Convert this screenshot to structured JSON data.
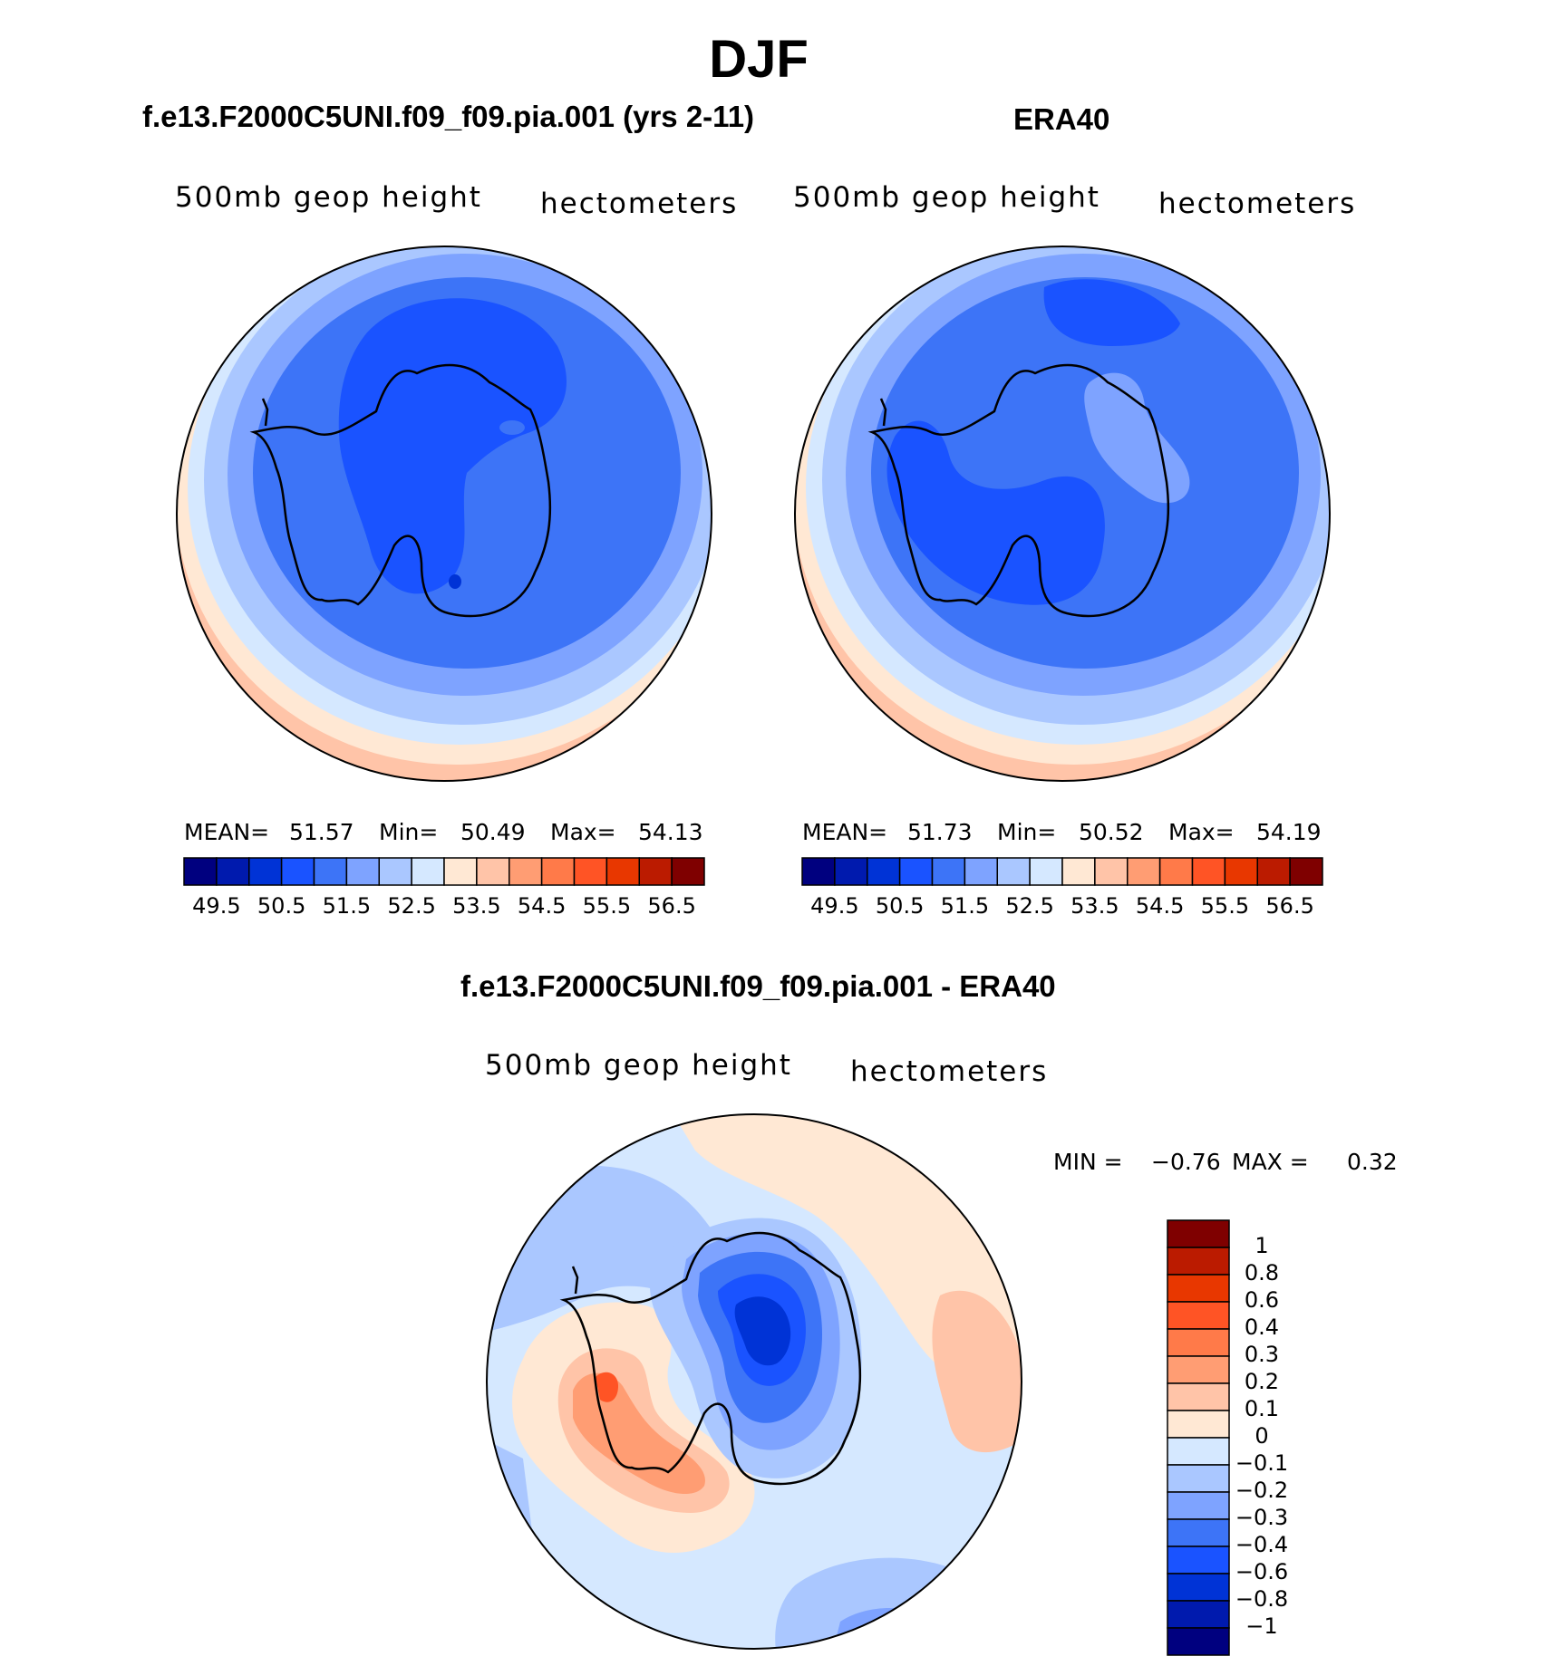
{
  "title": "DJF",
  "palette": [
    "#00007f",
    "#001aae",
    "#0033d6",
    "#1a53ff",
    "#3d74f7",
    "#7ea3ff",
    "#aac7ff",
    "#d5e8ff",
    "#ffe8d4",
    "#ffc4a8",
    "#ff9d73",
    "#ff7a49",
    "#ff5425",
    "#e83700",
    "#bb1b00",
    "#7f0000"
  ],
  "panels": [
    {
      "title": "f.e13.F2000C5UNI.f09_f09.pia.001 (yrs 2-11)",
      "variable": "500mb geop height",
      "units": "hectometers",
      "stats": {
        "mean_label": "MEAN=",
        "mean": "51.57",
        "min_label": "Min=",
        "min": "50.49",
        "max_label": "Max=",
        "max": "54.13"
      },
      "colorbar_labels": [
        "49.5",
        "50.5",
        "51.5",
        "52.5",
        "53.5",
        "54.5",
        "55.5",
        "56.5"
      ]
    },
    {
      "title": "ERA40",
      "variable": "500mb geop height",
      "units": "hectometers",
      "stats": {
        "mean_label": "MEAN=",
        "mean": "51.73",
        "min_label": "Min=",
        "min": "50.52",
        "max_label": "Max=",
        "max": "54.19"
      },
      "colorbar_labels": [
        "49.5",
        "50.5",
        "51.5",
        "52.5",
        "53.5",
        "54.5",
        "55.5",
        "56.5"
      ]
    }
  ],
  "diff": {
    "title": "f.e13.F2000C5UNI.f09_f09.pia.001 - ERA40",
    "variable": "500mb geop height",
    "units": "hectometers",
    "min_label": "MIN =",
    "min": "−0.76",
    "max_label": "MAX =",
    "max": "0.32",
    "colorbar_labels": [
      "1",
      "0.8",
      "0.6",
      "0.4",
      "0.3",
      "0.2",
      "0.1",
      "0",
      "−0.1",
      "−0.2",
      "−0.3",
      "−0.4",
      "−0.6",
      "−0.8",
      "−1"
    ]
  }
}
